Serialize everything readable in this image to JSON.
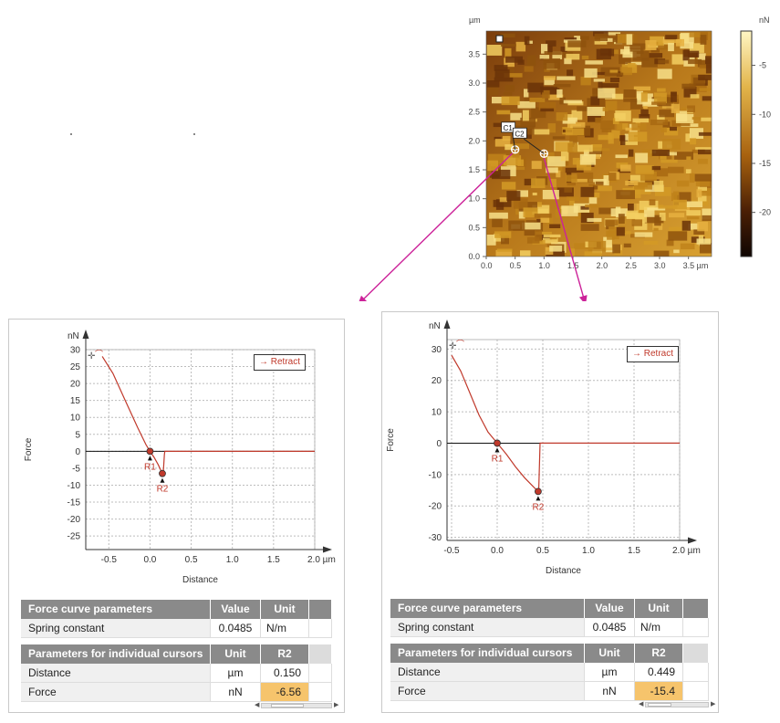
{
  "afm_image": {
    "y_unit": "µm",
    "x_unit": "µm",
    "y_ticks": [
      "0.0",
      "0.5",
      "1.0",
      "1.5",
      "2.0",
      "2.5",
      "3.0",
      "3.5"
    ],
    "x_ticks": [
      "0.0",
      "0.5",
      "1.0",
      "1.5",
      "2.0",
      "2.5",
      "3.0",
      "3.5 µm"
    ],
    "cursors": [
      {
        "label": "C1",
        "x": 0.5,
        "y": 1.85
      },
      {
        "label": "C2",
        "x": 1.0,
        "y": 1.78
      }
    ],
    "colors": {
      "high": "#fff3b8",
      "mid": "#c88a1a",
      "low": "#3a1604",
      "arrow": "#cc2299"
    }
  },
  "colorbar": {
    "unit": "nN",
    "ticks": [
      "-5",
      "-10",
      "-15",
      "-20"
    ],
    "tick_values": [
      -5,
      -10,
      -15,
      -20
    ],
    "range": [
      -24.5,
      -1.5
    ]
  },
  "panels": [
    {
      "legend": "→ Retract",
      "ylabel": "Force",
      "xlabel": "Distance",
      "y_unit": "nN",
      "r1_label": "R1",
      "r2_label": "R2",
      "table1": {
        "headers": [
          "Force curve parameters",
          "Value",
          "Unit"
        ],
        "rows": [
          [
            "Spring constant",
            "0.0485",
            "N/m"
          ]
        ]
      },
      "table2": {
        "headers": [
          "Parameters for individual cursors",
          "Unit",
          "R2"
        ],
        "rows": [
          [
            "Distance",
            "µm",
            "0.150"
          ],
          [
            "Force",
            "nN",
            "-6.56"
          ]
        ]
      }
    },
    {
      "legend": "→ Retract",
      "ylabel": "Force",
      "xlabel": "Distance",
      "y_unit": "nN",
      "r1_label": "R1",
      "r2_label": "R2",
      "table1": {
        "headers": [
          "Force curve parameters",
          "Value",
          "Unit"
        ],
        "rows": [
          [
            "Spring constant",
            "0.0485",
            "N/m"
          ]
        ]
      },
      "table2": {
        "headers": [
          "Parameters for individual cursors",
          "Unit",
          "R2"
        ],
        "rows": [
          [
            "Distance",
            "µm",
            "0.449"
          ],
          [
            "Force",
            "nN",
            "-15.4"
          ]
        ]
      }
    }
  ],
  "chart_data": [
    {
      "type": "heatmap",
      "xlabel": "µm",
      "ylabel": "µm",
      "xlim": [
        0,
        3.9
      ],
      "ylim": [
        0,
        3.9
      ],
      "x_ticks": [
        0,
        0.5,
        1.0,
        1.5,
        2.0,
        2.5,
        3.0,
        3.5
      ],
      "y_ticks": [
        0,
        0.5,
        1.0,
        1.5,
        2.0,
        2.5,
        3.0,
        3.5
      ],
      "colorbar_unit": "nN",
      "colorbar_range": [
        -24.5,
        -1.5
      ],
      "cursors": [
        {
          "name": "C1",
          "x": 0.5,
          "y": 1.85
        },
        {
          "name": "C2",
          "x": 1.0,
          "y": 1.78
        }
      ]
    },
    {
      "type": "line",
      "xlabel": "Distance",
      "ylabel": "Force",
      "x_unit": "µm",
      "y_unit": "nN",
      "xlim": [
        -0.78,
        2.0
      ],
      "ylim": [
        -29,
        30
      ],
      "x_ticks": [
        -0.5,
        0.0,
        0.5,
        1.0,
        1.5,
        2.0
      ],
      "y_ticks": [
        30,
        25,
        20,
        15,
        10,
        5,
        0,
        -5,
        -10,
        -15,
        -20,
        -25
      ],
      "grid": true,
      "legend_position": "top-right",
      "series": [
        {
          "name": "Retract",
          "x": [
            -0.58,
            -0.45,
            -0.3,
            -0.15,
            -0.05,
            0.0,
            0.05,
            0.1,
            0.13,
            0.15,
            0.16,
            0.175,
            0.18,
            2.0
          ],
          "y": [
            28,
            23,
            15,
            7,
            2,
            0,
            -1.8,
            -4,
            -5.6,
            -6.56,
            -6.56,
            -1,
            0,
            0
          ]
        }
      ],
      "cursors": [
        {
          "name": "R1",
          "x": 0.0,
          "y": 0.0
        },
        {
          "name": "R2",
          "x": 0.15,
          "y": -6.56
        }
      ]
    },
    {
      "type": "line",
      "xlabel": "Distance",
      "ylabel": "Force",
      "x_unit": "µm",
      "y_unit": "nN",
      "xlim": [
        -0.55,
        2.0
      ],
      "ylim": [
        -31,
        33
      ],
      "x_ticks": [
        -0.5,
        0.0,
        0.5,
        1.0,
        1.5,
        2.0
      ],
      "y_ticks": [
        30,
        20,
        10,
        0,
        -10,
        -20,
        -30
      ],
      "grid": true,
      "legend_position": "top-right",
      "series": [
        {
          "name": "Retract",
          "x": [
            -0.5,
            -0.4,
            -0.3,
            -0.2,
            -0.1,
            0.0,
            0.1,
            0.2,
            0.3,
            0.4,
            0.449,
            0.455,
            0.47,
            2.0
          ],
          "y": [
            28,
            23,
            16,
            9,
            3.5,
            0,
            -3.5,
            -7.5,
            -11,
            -14,
            -15.4,
            -15.4,
            0,
            0
          ]
        }
      ],
      "cursors": [
        {
          "name": "R1",
          "x": 0.0,
          "y": 0.0
        },
        {
          "name": "R2",
          "x": 0.449,
          "y": -15.4
        }
      ]
    }
  ]
}
